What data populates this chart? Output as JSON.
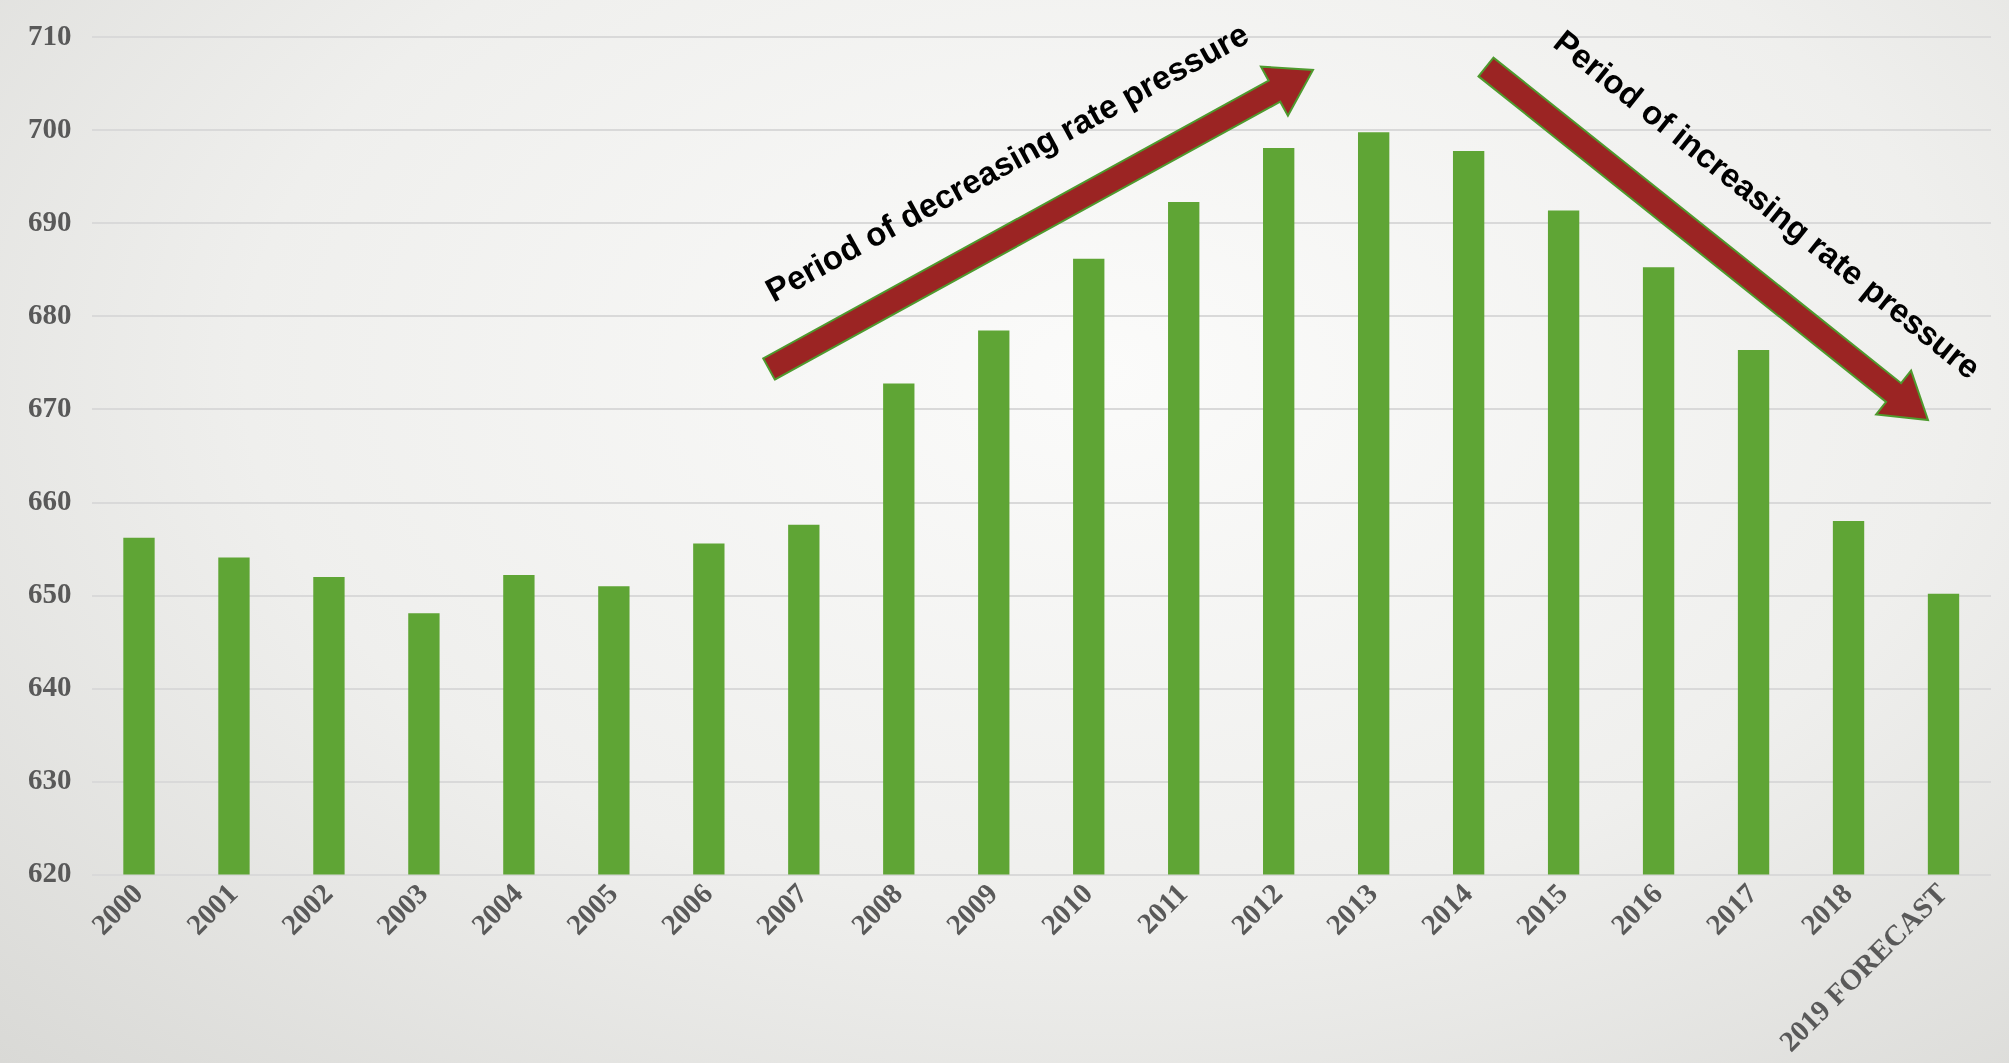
{
  "chart_data": {
    "type": "bar",
    "categories": [
      "2000",
      "2001",
      "2002",
      "2003",
      "2004",
      "2005",
      "2006",
      "2007",
      "2008",
      "2009",
      "2010",
      "2011",
      "2012",
      "2013",
      "2014",
      "2015",
      "2016",
      "2017",
      "2018",
      "2019 FORECAST"
    ],
    "values": [
      656.2,
      654.1,
      652.0,
      648.1,
      652.2,
      651.0,
      655.6,
      657.6,
      672.8,
      678.5,
      686.2,
      692.3,
      698.1,
      699.8,
      697.8,
      691.4,
      685.3,
      676.4,
      658.0,
      650.2
    ],
    "color": "#5fa535",
    "ylim": [
      620,
      710
    ],
    "yticks": [
      620,
      630,
      640,
      650,
      660,
      670,
      680,
      690,
      700,
      710
    ],
    "grid": "y",
    "legend": false,
    "annotations": [
      "Period of decreasing rate pressure",
      "Period of increasing rate pressure"
    ]
  }
}
